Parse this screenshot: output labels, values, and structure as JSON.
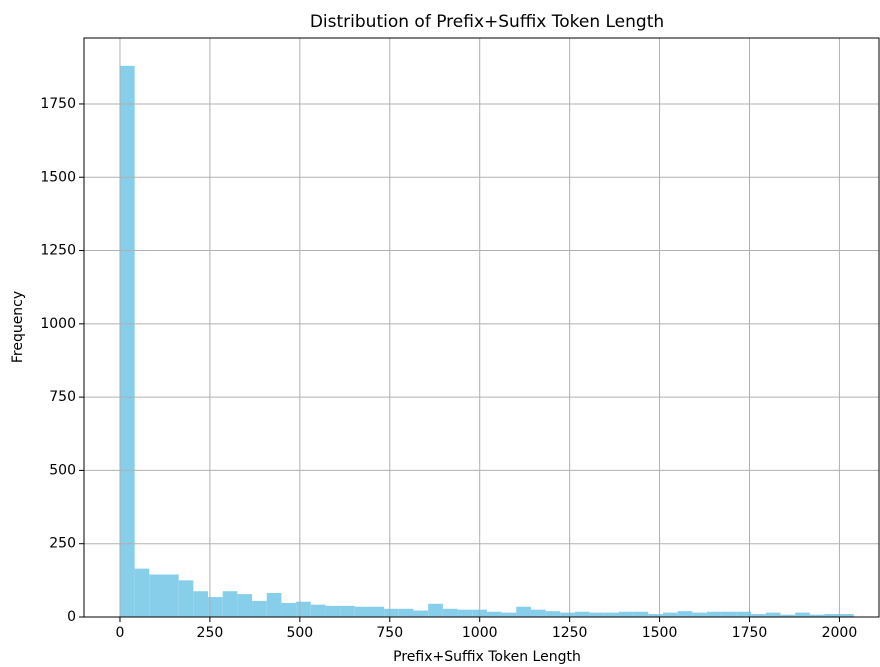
{
  "chart_data": {
    "type": "histogram",
    "title": "Distribution of Prefix+Suffix Token Length",
    "xlabel": "Prefix+Suffix Token Length",
    "ylabel": "Frequency",
    "color": "#87ceeb",
    "grid": true,
    "bins": [
      0,
      40.8,
      81.6,
      122.4,
      163.2,
      204,
      244.8,
      285.6,
      326.4,
      367.2,
      408,
      448.8,
      489.6,
      530.4,
      571.2,
      612,
      652.8,
      693.6,
      734.4,
      775.2,
      816,
      856.8,
      897.6,
      938.4,
      979.2,
      1020,
      1060.8,
      1101.6,
      1142.4,
      1183.2,
      1224,
      1264.8,
      1305.6,
      1346.4,
      1387.2,
      1428,
      1468.8,
      1509.6,
      1550.4,
      1591.2,
      1632,
      1672.8,
      1713.6,
      1754.4,
      1795.2,
      1836,
      1876.8,
      1917.6,
      1958.4,
      1999.2,
      2040
    ],
    "values": [
      1880,
      165,
      145,
      145,
      125,
      88,
      68,
      88,
      78,
      55,
      82,
      48,
      52,
      42,
      38,
      38,
      35,
      35,
      28,
      28,
      22,
      45,
      28,
      25,
      25,
      18,
      15,
      35,
      25,
      20,
      15,
      18,
      15,
      15,
      18,
      18,
      10,
      15,
      20,
      15,
      18,
      18,
      18,
      10,
      15,
      8,
      15,
      8,
      10,
      10
    ],
    "xlim": [
      -100,
      2110
    ],
    "ylim": [
      0,
      1975
    ],
    "xticks": [
      0,
      250,
      500,
      750,
      1000,
      1250,
      1500,
      1750,
      2000
    ],
    "yticks": [
      0,
      250,
      500,
      750,
      1000,
      1250,
      1500,
      1750
    ]
  }
}
